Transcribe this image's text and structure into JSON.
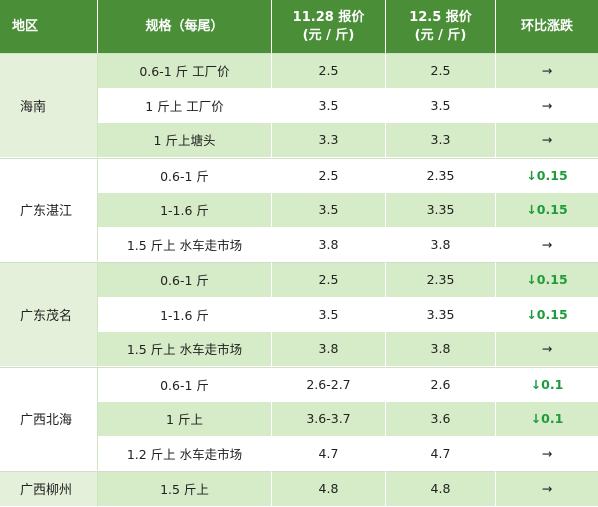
{
  "headers": {
    "region": "地区",
    "spec": "规格（每尾）",
    "price1_line1": "11.28 报价",
    "price1_line2": "(元 / 斤)",
    "price2_line1": "12.5 报价",
    "price2_line2": "(元 / 斤)",
    "change": "环比涨跌"
  },
  "groups": [
    {
      "region": "海南",
      "rows": [
        {
          "spec": "0.6-1 斤 工厂价",
          "p1": "2.5",
          "p2": "2.5",
          "change": "→"
        },
        {
          "spec": "1 斤上 工厂价",
          "p1": "3.5",
          "p2": "3.5",
          "change": "→"
        },
        {
          "spec": "1 斤上塘头",
          "p1": "3.3",
          "p2": "3.3",
          "change": "→"
        }
      ]
    },
    {
      "region": "广东湛江",
      "rows": [
        {
          "spec": "0.6-1 斤",
          "p1": "2.5",
          "p2": "2.35",
          "change": "↓0.15"
        },
        {
          "spec": "1-1.6 斤",
          "p1": "3.5",
          "p2": "3.35",
          "change": "↓0.15"
        },
        {
          "spec": "1.5 斤上 水车走市场",
          "p1": "3.8",
          "p2": "3.8",
          "change": "→"
        }
      ]
    },
    {
      "region": "广东茂名",
      "rows": [
        {
          "spec": "0.6-1 斤",
          "p1": "2.5",
          "p2": "2.35",
          "change": "↓0.15"
        },
        {
          "spec": "1-1.6 斤",
          "p1": "3.5",
          "p2": "3.35",
          "change": "↓0.15"
        },
        {
          "spec": "1.5 斤上 水车走市场",
          "p1": "3.8",
          "p2": "3.8",
          "change": "→"
        }
      ]
    },
    {
      "region": "广西北海",
      "rows": [
        {
          "spec": "0.6-1 斤",
          "p1": "2.6-2.7",
          "p2": "2.6",
          "change": "↓0.1"
        },
        {
          "spec": "1 斤上",
          "p1": "3.6-3.7",
          "p2": "3.6",
          "change": "↓0.1"
        },
        {
          "spec": "1.2 斤上 水车走市场",
          "p1": "4.7",
          "p2": "4.7",
          "change": "→"
        }
      ]
    },
    {
      "region": "广西柳州",
      "rows": [
        {
          "spec": "1.5 斤上",
          "p1": "4.8",
          "p2": "4.8",
          "change": "→"
        }
      ]
    }
  ],
  "colors": {
    "header_bg": "#4a8f38",
    "row_alt_bg": "#d6ebc7",
    "down_color": "#1e9c3c"
  }
}
